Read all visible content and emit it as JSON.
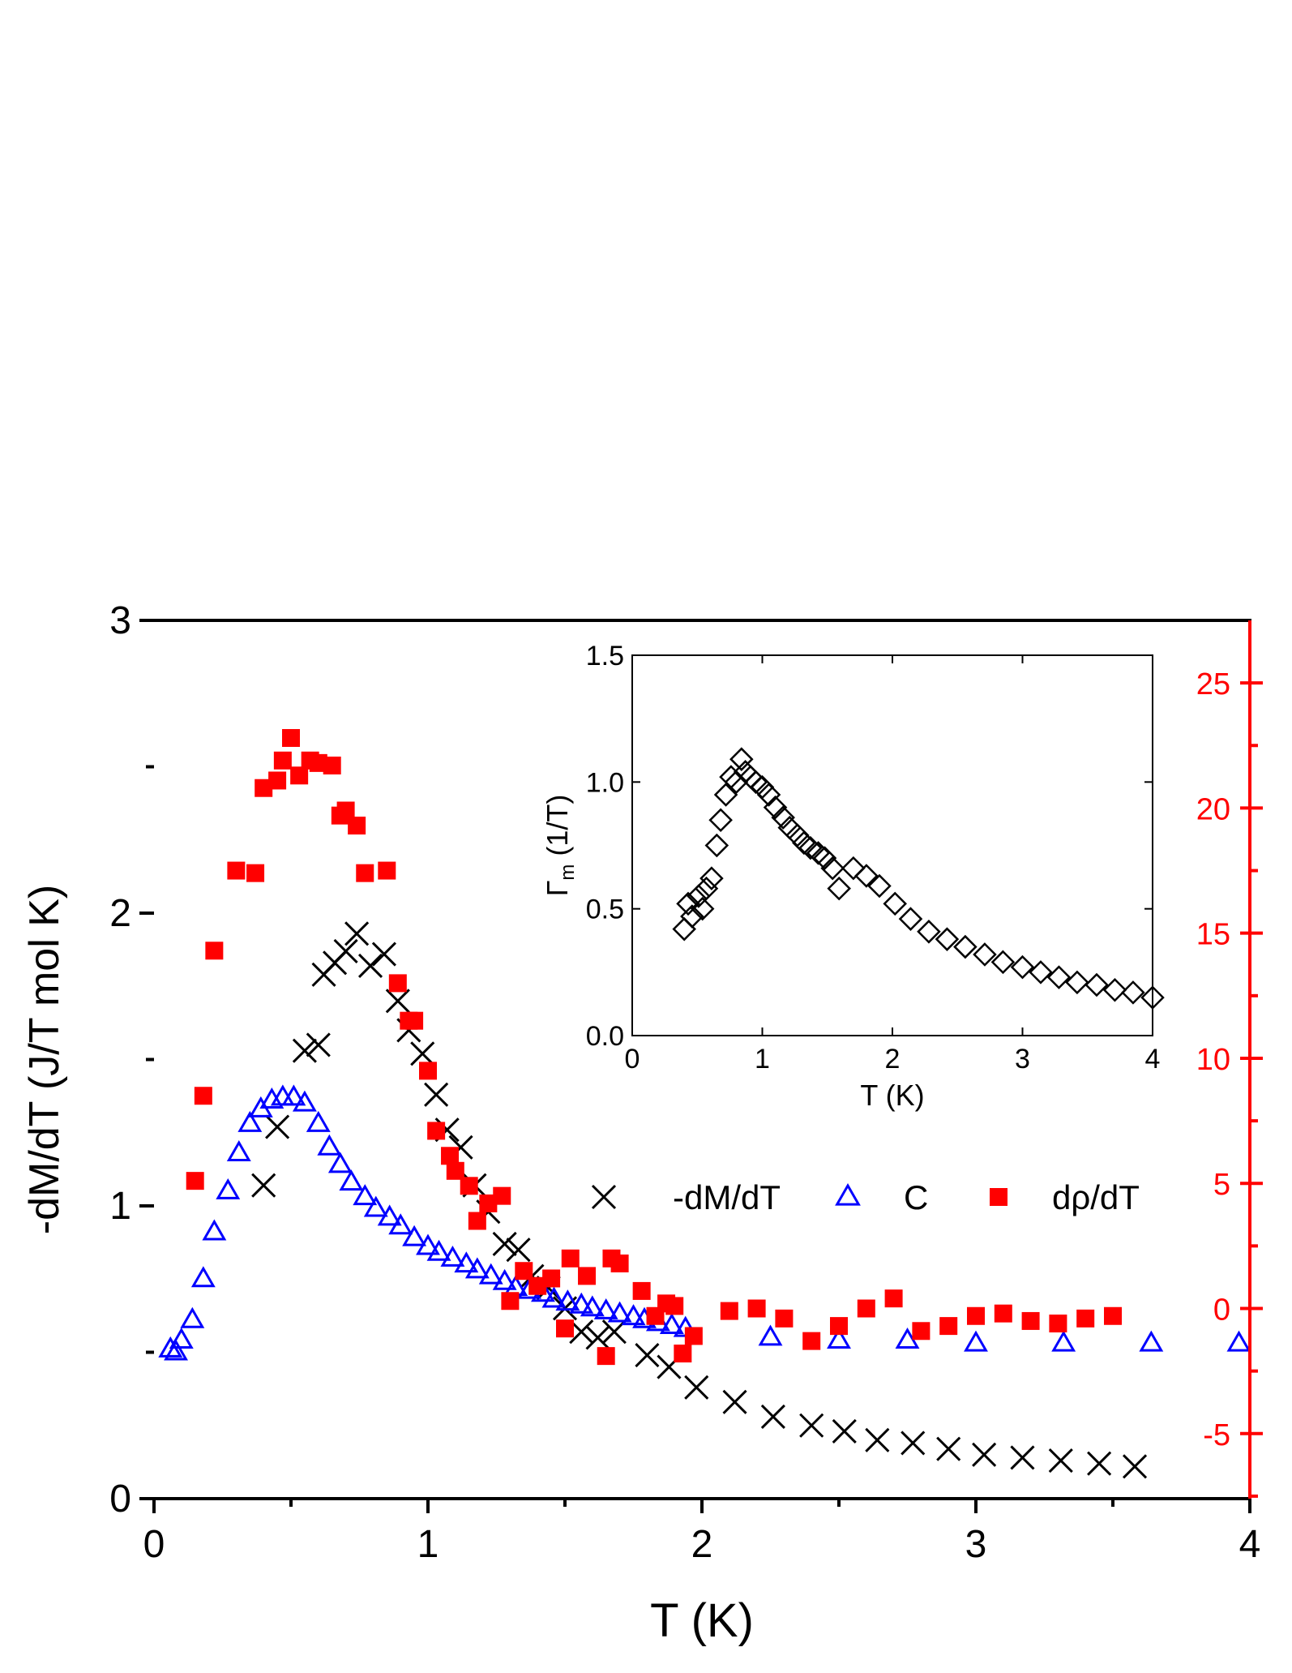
{
  "chart_data": [
    {
      "type": "scatter",
      "xlabel": "T (K)",
      "ylabel": "-dM/dT (J/T mol K)",
      "xlim": [
        0,
        4
      ],
      "ylim": [
        0,
        3
      ],
      "y2lim": [
        -7.6,
        27.5
      ],
      "x_ticks": [
        "0",
        "1",
        "2",
        "3",
        "4"
      ],
      "y_ticks": [
        "0",
        "1",
        "2",
        "3"
      ],
      "y2_ticks": [
        "-5",
        "0",
        "5",
        "10",
        "15",
        "20",
        "25"
      ],
      "legend_position": "right, middle",
      "colors": {
        "dM": "#000000",
        "C": "#0000ff",
        "drho": "#ff0000",
        "right_axis": "#ff0000"
      },
      "series": [
        {
          "name": "-dM/dT",
          "marker": "x",
          "axis": "left",
          "x": [
            0.4,
            0.45,
            0.55,
            0.6,
            0.62,
            0.66,
            0.7,
            0.74,
            0.79,
            0.84,
            0.89,
            0.93,
            0.98,
            1.03,
            1.07,
            1.12,
            1.17,
            1.22,
            1.28,
            1.33,
            1.38,
            1.44,
            1.5,
            1.56,
            1.62,
            1.68,
            1.8,
            1.88,
            1.98,
            2.12,
            2.26,
            2.4,
            2.52,
            2.64,
            2.77,
            2.9,
            3.03,
            3.17,
            3.31,
            3.45,
            3.58
          ],
          "y": [
            1.07,
            1.27,
            1.53,
            1.55,
            1.79,
            1.83,
            1.87,
            1.93,
            1.82,
            1.86,
            1.7,
            1.6,
            1.52,
            1.38,
            1.26,
            1.2,
            1.07,
            0.98,
            0.87,
            0.85,
            0.76,
            0.72,
            0.65,
            0.57,
            0.55,
            0.57,
            0.49,
            0.45,
            0.38,
            0.33,
            0.28,
            0.25,
            0.23,
            0.2,
            0.19,
            0.17,
            0.15,
            0.14,
            0.13,
            0.12,
            0.11
          ]
        },
        {
          "name": "C",
          "marker": "triangle-open",
          "axis": "left",
          "x": [
            0.06,
            0.08,
            0.1,
            0.14,
            0.18,
            0.22,
            0.27,
            0.31,
            0.35,
            0.39,
            0.43,
            0.47,
            0.51,
            0.55,
            0.6,
            0.64,
            0.68,
            0.72,
            0.77,
            0.81,
            0.86,
            0.9,
            0.95,
            1.0,
            1.04,
            1.09,
            1.14,
            1.18,
            1.23,
            1.28,
            1.32,
            1.37,
            1.42,
            1.46,
            1.51,
            1.56,
            1.6,
            1.65,
            1.7,
            1.75,
            1.79,
            1.84,
            1.89,
            1.94,
            2.25,
            2.5,
            2.75,
            3.0,
            3.32,
            3.64,
            3.96
          ],
          "y": [
            0.51,
            0.5,
            0.54,
            0.61,
            0.75,
            0.91,
            1.05,
            1.18,
            1.28,
            1.33,
            1.36,
            1.37,
            1.37,
            1.35,
            1.28,
            1.2,
            1.14,
            1.08,
            1.03,
            0.99,
            0.96,
            0.93,
            0.89,
            0.86,
            0.84,
            0.82,
            0.8,
            0.78,
            0.76,
            0.74,
            0.72,
            0.71,
            0.7,
            0.68,
            0.67,
            0.66,
            0.65,
            0.64,
            0.63,
            0.62,
            0.61,
            0.6,
            0.59,
            0.58,
            0.55,
            0.54,
            0.54,
            0.53,
            0.53,
            0.53,
            0.53
          ]
        },
        {
          "name": "dρ/dT",
          "marker": "square-filled",
          "axis": "right",
          "x": [
            0.15,
            0.18,
            0.22,
            0.3,
            0.37,
            0.4,
            0.45,
            0.47,
            0.5,
            0.53,
            0.57,
            0.6,
            0.65,
            0.68,
            0.7,
            0.74,
            0.77,
            0.85,
            0.89,
            0.93,
            0.95,
            1.0,
            1.03,
            1.08,
            1.1,
            1.15,
            1.18,
            1.22,
            1.27,
            1.3,
            1.35,
            1.4,
            1.45,
            1.5,
            1.52,
            1.58,
            1.65,
            1.67,
            1.7,
            1.78,
            1.83,
            1.87,
            1.9,
            1.93,
            1.97,
            2.1,
            2.2,
            2.3,
            2.4,
            2.5,
            2.6,
            2.7,
            2.8,
            2.9,
            3.0,
            3.1,
            3.2,
            3.3,
            3.4,
            3.5
          ],
          "y": [
            5.1,
            8.5,
            14.3,
            17.5,
            17.4,
            20.8,
            21.1,
            21.9,
            22.8,
            21.3,
            21.9,
            21.8,
            21.7,
            19.7,
            19.9,
            19.3,
            17.4,
            17.5,
            13.0,
            11.5,
            11.5,
            9.5,
            7.1,
            6.1,
            5.5,
            4.9,
            3.5,
            4.2,
            4.5,
            0.3,
            1.5,
            0.9,
            1.2,
            -0.8,
            2.0,
            1.3,
            -1.9,
            2.0,
            1.8,
            0.7,
            -0.3,
            0.2,
            0.1,
            -1.8,
            -1.1,
            -0.1,
            0.0,
            -0.4,
            -1.3,
            -0.7,
            0.0,
            0.4,
            -0.9,
            -0.7,
            -0.3,
            -0.2,
            -0.5,
            -0.6,
            -0.4,
            -0.3
          ]
        }
      ]
    },
    {
      "type": "scatter",
      "xlabel": "T (K)",
      "ylabel": "Γm (1/T)",
      "ylabel_main": "Γ",
      "ylabel_sub": "m",
      "ylabel_rest": " (1/T)",
      "xlim": [
        0,
        4
      ],
      "ylim": [
        0,
        1.5
      ],
      "x_ticks": [
        "0",
        "1",
        "2",
        "3",
        "4"
      ],
      "y_ticks": [
        "0.0",
        "0.5",
        "1.0",
        "1.5"
      ],
      "series": [
        {
          "marker": "diamond-open",
          "color": "#000000",
          "x": [
            0.4,
            0.43,
            0.46,
            0.51,
            0.54,
            0.57,
            0.61,
            0.65,
            0.68,
            0.72,
            0.76,
            0.8,
            0.84,
            0.87,
            0.91,
            0.95,
            1.0,
            1.05,
            1.1,
            1.16,
            1.21,
            1.27,
            1.32,
            1.37,
            1.43,
            1.48,
            1.54,
            1.59,
            1.7,
            1.8,
            1.9,
            2.02,
            2.14,
            2.28,
            2.42,
            2.56,
            2.71,
            2.85,
            3.0,
            3.14,
            3.28,
            3.42,
            3.57,
            3.71,
            3.85,
            4.0
          ],
          "y": [
            0.42,
            0.52,
            0.47,
            0.55,
            0.5,
            0.58,
            0.62,
            0.75,
            0.85,
            0.95,
            1.02,
            1.0,
            1.09,
            1.04,
            1.02,
            1.0,
            0.98,
            0.95,
            0.9,
            0.86,
            0.82,
            0.79,
            0.76,
            0.74,
            0.72,
            0.7,
            0.66,
            0.58,
            0.66,
            0.63,
            0.59,
            0.52,
            0.46,
            0.41,
            0.38,
            0.35,
            0.32,
            0.29,
            0.27,
            0.25,
            0.23,
            0.21,
            0.2,
            0.18,
            0.17,
            0.15
          ]
        }
      ]
    }
  ]
}
